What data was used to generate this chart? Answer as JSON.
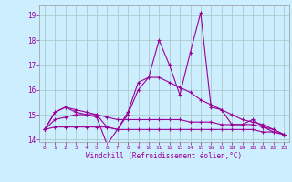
{
  "xlabel": "Windchill (Refroidissement éolien,°C)",
  "x_values": [
    0,
    1,
    2,
    3,
    4,
    5,
    6,
    7,
    8,
    9,
    10,
    11,
    12,
    13,
    14,
    15,
    16,
    17,
    18,
    19,
    20,
    21,
    22,
    23
  ],
  "series1": [
    14.4,
    15.1,
    15.3,
    15.2,
    15.1,
    15.0,
    14.5,
    14.4,
    15.1,
    16.3,
    16.5,
    18.0,
    17.0,
    15.8,
    17.5,
    19.1,
    15.3,
    15.2,
    14.6,
    14.6,
    14.8,
    14.5,
    14.3,
    14.2
  ],
  "series2": [
    14.4,
    15.1,
    15.3,
    15.1,
    15.0,
    14.9,
    13.8,
    14.4,
    15.0,
    16.0,
    16.5,
    16.5,
    16.3,
    16.1,
    15.9,
    15.6,
    15.4,
    15.2,
    15.0,
    14.8,
    14.7,
    14.6,
    14.4,
    14.2
  ],
  "series3": [
    14.4,
    14.8,
    14.9,
    15.0,
    15.0,
    15.0,
    14.9,
    14.8,
    14.8,
    14.8,
    14.8,
    14.8,
    14.8,
    14.8,
    14.7,
    14.7,
    14.7,
    14.6,
    14.6,
    14.6,
    14.6,
    14.5,
    14.4,
    14.2
  ],
  "series4": [
    14.4,
    14.5,
    14.5,
    14.5,
    14.5,
    14.5,
    14.5,
    14.4,
    14.4,
    14.4,
    14.4,
    14.4,
    14.4,
    14.4,
    14.4,
    14.4,
    14.4,
    14.4,
    14.4,
    14.4,
    14.4,
    14.3,
    14.3,
    14.2
  ],
  "line_color": "#990099",
  "bg_color": "#cceeff",
  "grid_color": "#aacccc",
  "ylim": [
    13.9,
    19.4
  ],
  "yticks": [
    14,
    15,
    16,
    17,
    18,
    19
  ],
  "xticks": [
    0,
    1,
    2,
    3,
    4,
    5,
    6,
    7,
    8,
    9,
    10,
    11,
    12,
    13,
    14,
    15,
    16,
    17,
    18,
    19,
    20,
    21,
    22,
    23
  ]
}
